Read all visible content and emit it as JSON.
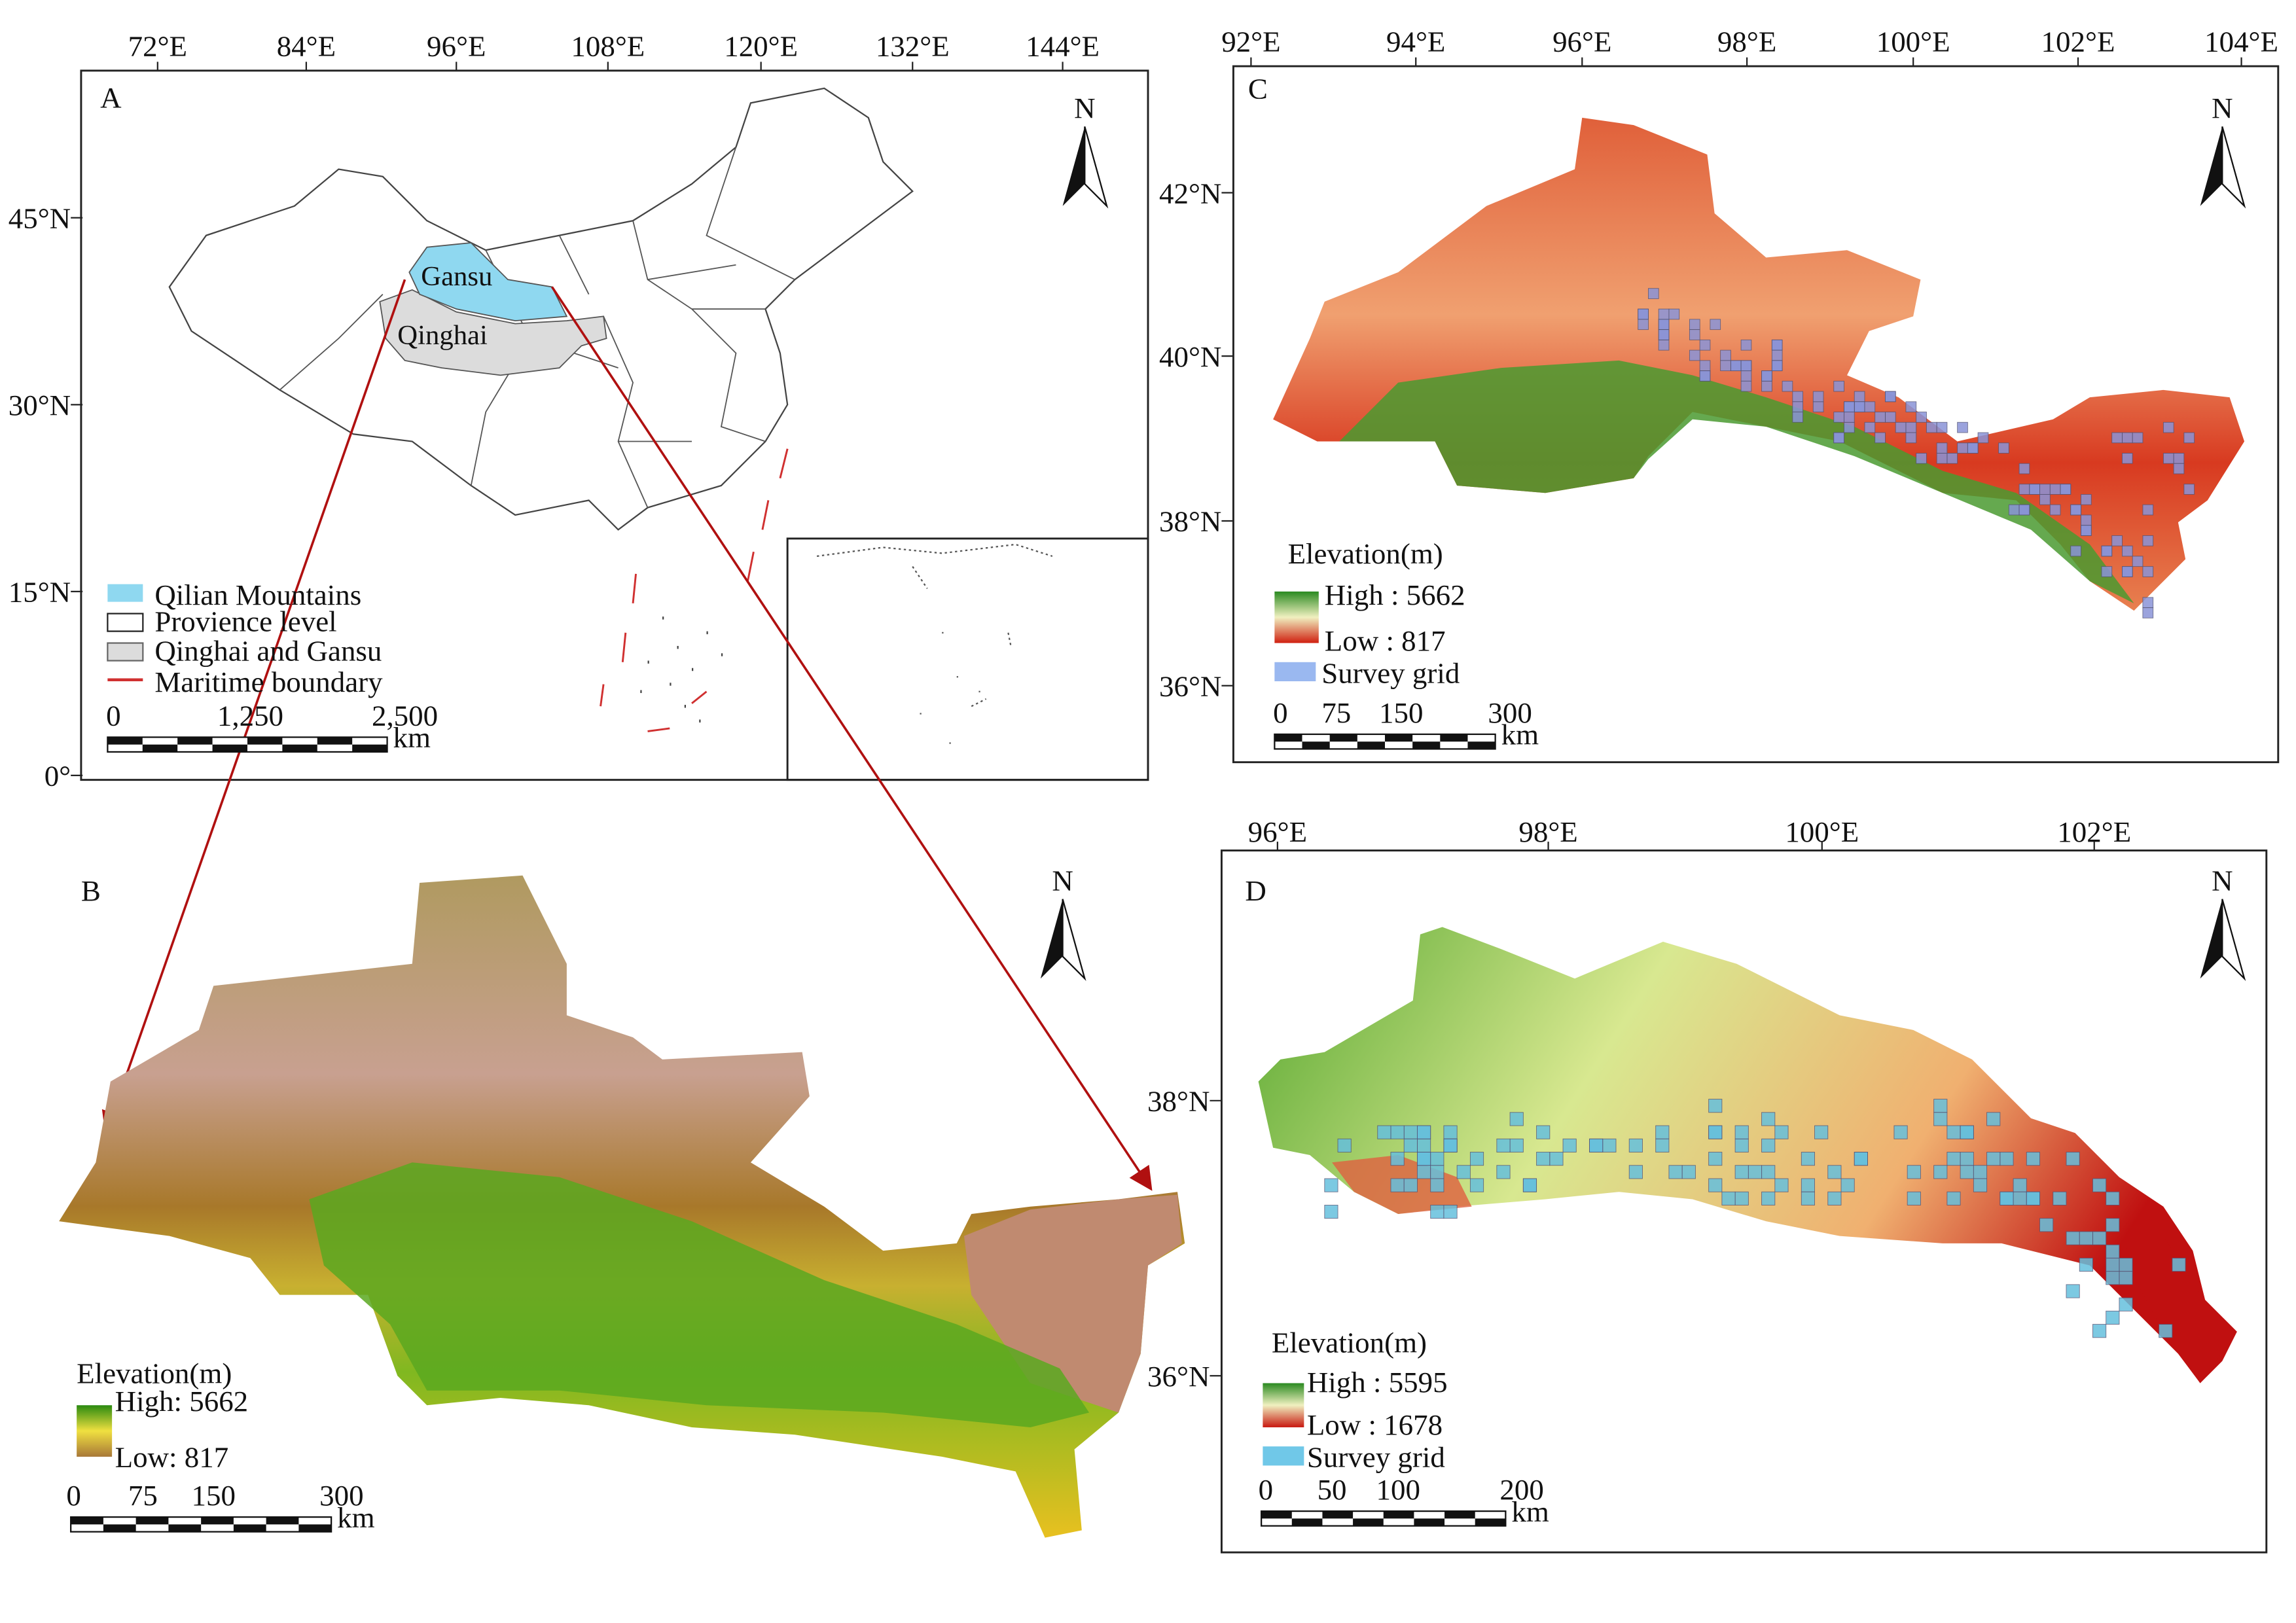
{
  "panels": {
    "a": {
      "label": "A",
      "north": "N",
      "x_ticks": [
        "72°E",
        "84°E",
        "96°E",
        "108°E",
        "120°E",
        "132°E",
        "144°E"
      ],
      "y_ticks": [
        "45°N",
        "30°N",
        "15°N",
        "0°"
      ],
      "places": [
        "Gansu",
        "Qinghai"
      ],
      "legend": [
        "Qilian Mountains",
        "Provience level",
        "Qinghai  and  Gansu",
        "Maritime boundary"
      ],
      "scale": [
        "0",
        "1,250",
        "2,500"
      ],
      "scale_unit": "km"
    },
    "b": {
      "label": "B",
      "north": "N",
      "legend_title": "Elevation(m)",
      "high": "High: 5662",
      "low": "Low: 817",
      "scale": [
        "0",
        "75",
        "150",
        "300"
      ],
      "scale_unit": "km"
    },
    "c": {
      "label": "C",
      "north": "N",
      "x_ticks": [
        "92°E",
        "94°E",
        "96°E",
        "98°E",
        "100°E",
        "102°E",
        "104°E"
      ],
      "y_ticks": [
        "42°N",
        "40°N",
        "38°N",
        "36°N"
      ],
      "legend_title": "Elevation(m)",
      "high": "High : 5662",
      "low": "Low : 817",
      "survey": "Survey grid",
      "scale": [
        "0",
        "75",
        "150",
        "300"
      ],
      "scale_unit": "km"
    },
    "d": {
      "label": "D",
      "north": "N",
      "x_ticks": [
        "96°E",
        "98°E",
        "100°E",
        "102°E"
      ],
      "y_ticks": [
        "38°N",
        "36°N"
      ],
      "legend_title": "Elevation(m)",
      "high": "High : 5595",
      "low": "Low : 1678",
      "survey": "Survey grid",
      "scale": [
        "0",
        "50",
        "100",
        "200"
      ],
      "scale_unit": "km"
    }
  }
}
